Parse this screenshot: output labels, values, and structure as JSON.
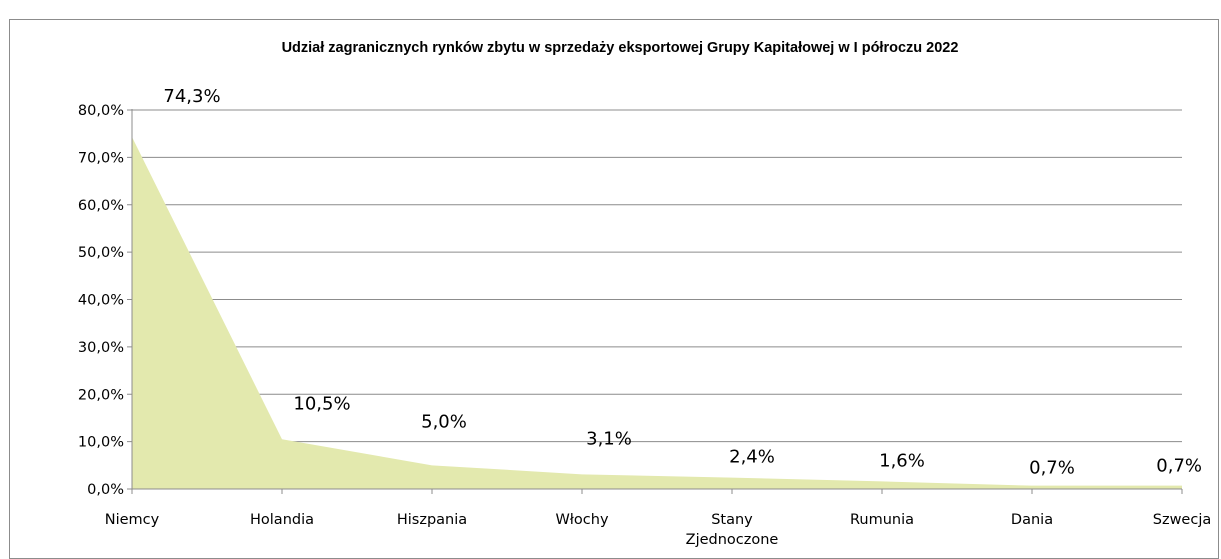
{
  "chart_data": {
    "type": "area",
    "title": "Udział zagranicznych rynków zbytu w sprzedaży eksportowej Grupy Kapitałowej  w I półroczu 2022",
    "categories": [
      [
        "Niemcy"
      ],
      [
        "Holandia"
      ],
      [
        "Hiszpania"
      ],
      [
        "Włochy"
      ],
      [
        "Stany",
        "Zjednoczone"
      ],
      [
        "Rumunia"
      ],
      [
        "Dania"
      ],
      [
        "Szwecja"
      ]
    ],
    "values": [
      74.3,
      10.5,
      5.0,
      3.1,
      2.4,
      1.6,
      0.7,
      0.7
    ],
    "data_labels": [
      "74,3%",
      "10,5%",
      "5,0%",
      "3,1%",
      "2,4%",
      "1,6%",
      "0,7%",
      "0,7%"
    ],
    "ylim": [
      0,
      80
    ],
    "yticks": [
      0,
      10,
      20,
      30,
      40,
      50,
      60,
      70,
      80
    ],
    "ytick_labels": [
      "0,0%",
      "10,0%",
      "20,0%",
      "30,0%",
      "40,0%",
      "50,0%",
      "60,0%",
      "70,0%",
      "80,0%"
    ],
    "xlabel": "",
    "ylabel": "",
    "grid": true,
    "fill_color": "#e3e9ae",
    "gridline_color": "#8c8c8c"
  }
}
